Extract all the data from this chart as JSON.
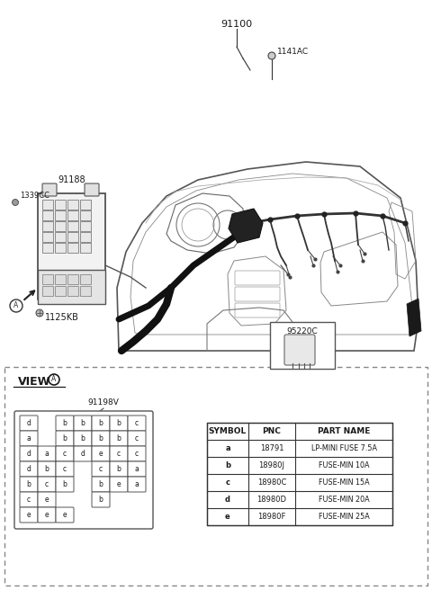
{
  "bg_color": "#ffffff",
  "text_color": "#1a1a1a",
  "line_color": "#333333",
  "labels": {
    "main_part": "91100",
    "bolt": "1141AC",
    "sub_part": "91188",
    "connector1": "1339CC",
    "connector2": "1125KB",
    "relay": "95220C",
    "view_label": "91198V"
  },
  "table_headers": [
    "SYMBOL",
    "PNC",
    "PART NAME"
  ],
  "table_rows": [
    [
      "a",
      "18791",
      "LP-MINI FUSE 7.5A"
    ],
    [
      "b",
      "18980J",
      "FUSE-MIN 10A"
    ],
    [
      "c",
      "18980C",
      "FUSE-MIN 15A"
    ],
    [
      "d",
      "18980D",
      "FUSE-MIN 20A"
    ],
    [
      "e",
      "18980F",
      "FUSE-MIN 25A"
    ]
  ],
  "fuse_grid_rows": [
    [
      [
        0,
        "d"
      ],
      [
        2,
        "b"
      ],
      [
        3,
        "b"
      ],
      [
        4,
        "b"
      ],
      [
        5,
        "b"
      ],
      [
        6,
        "c"
      ]
    ],
    [
      [
        0,
        "a"
      ],
      [
        2,
        "b"
      ],
      [
        3,
        "b"
      ],
      [
        4,
        "b"
      ],
      [
        5,
        "b"
      ],
      [
        6,
        "c"
      ]
    ],
    [
      [
        0,
        "d"
      ],
      [
        1,
        "a"
      ],
      [
        2,
        "c"
      ],
      [
        3,
        "d"
      ],
      [
        4,
        "e"
      ],
      [
        5,
        "c"
      ],
      [
        6,
        "c"
      ]
    ],
    [
      [
        0,
        "d"
      ],
      [
        1,
        "b"
      ],
      [
        2,
        "c"
      ],
      [
        4,
        "c"
      ],
      [
        5,
        "b"
      ],
      [
        6,
        "a"
      ]
    ],
    [
      [
        0,
        "b"
      ],
      [
        1,
        "c"
      ],
      [
        2,
        "b"
      ],
      [
        4,
        "b"
      ],
      [
        5,
        "e"
      ],
      [
        6,
        "a"
      ]
    ],
    [
      [
        0,
        "c"
      ],
      [
        1,
        "e"
      ],
      [
        4,
        "b"
      ]
    ],
    [
      [
        0,
        "e"
      ],
      [
        1,
        "e"
      ],
      [
        2,
        "e"
      ]
    ]
  ]
}
